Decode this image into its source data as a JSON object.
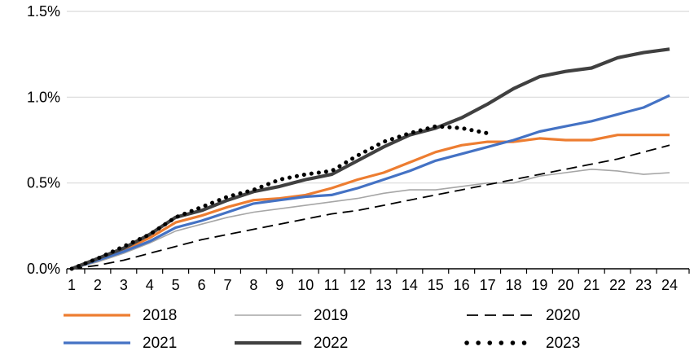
{
  "chart_data": {
    "type": "line",
    "title": "",
    "xlabel": "",
    "ylabel": "",
    "grid": true,
    "legend_position": "bottom",
    "ylim": [
      0,
      1.5
    ],
    "y_ticks": [
      {
        "label": "0.0%",
        "value": 0
      },
      {
        "label": "0.5%",
        "value": 0.5
      },
      {
        "label": "1.0%",
        "value": 1.0
      },
      {
        "label": "1.5%",
        "value": 1.5
      }
    ],
    "x": [
      1,
      2,
      3,
      4,
      5,
      6,
      7,
      8,
      9,
      10,
      11,
      12,
      13,
      14,
      15,
      16,
      17,
      18,
      19,
      20,
      21,
      22,
      23,
      24
    ],
    "series": [
      {
        "name": "2018",
        "color": "#ED7D31",
        "style": "solid",
        "width": 3.2,
        "values": [
          0.0,
          0.05,
          0.11,
          0.18,
          0.27,
          0.31,
          0.36,
          0.4,
          0.41,
          0.43,
          0.47,
          0.52,
          0.56,
          0.62,
          0.68,
          0.72,
          0.74,
          0.74,
          0.76,
          0.75,
          0.75,
          0.78,
          0.78,
          0.78
        ]
      },
      {
        "name": "2019",
        "color": "#A6A6A6",
        "style": "solid",
        "width": 1.6,
        "values": [
          0.0,
          0.04,
          0.09,
          0.15,
          0.22,
          0.26,
          0.3,
          0.33,
          0.35,
          0.37,
          0.39,
          0.41,
          0.44,
          0.46,
          0.46,
          0.48,
          0.5,
          0.5,
          0.54,
          0.56,
          0.58,
          0.57,
          0.55,
          0.56
        ]
      },
      {
        "name": "2020",
        "color": "#000000",
        "style": "dashed",
        "width": 1.8,
        "values": [
          0.0,
          0.02,
          0.05,
          0.09,
          0.13,
          0.17,
          0.2,
          0.23,
          0.26,
          0.29,
          0.32,
          0.34,
          0.37,
          0.4,
          0.43,
          0.46,
          0.49,
          0.52,
          0.55,
          0.58,
          0.61,
          0.64,
          0.68,
          0.72
        ]
      },
      {
        "name": "2021",
        "color": "#4472C4",
        "style": "solid",
        "width": 3.2,
        "values": [
          0.0,
          0.05,
          0.1,
          0.16,
          0.24,
          0.28,
          0.33,
          0.38,
          0.4,
          0.42,
          0.43,
          0.47,
          0.52,
          0.57,
          0.63,
          0.67,
          0.71,
          0.75,
          0.8,
          0.83,
          0.86,
          0.9,
          0.94,
          1.01
        ]
      },
      {
        "name": "2022",
        "color": "#404040",
        "style": "solid",
        "width": 4.2,
        "values": [
          0.0,
          0.06,
          0.12,
          0.2,
          0.3,
          0.34,
          0.4,
          0.45,
          0.48,
          0.52,
          0.55,
          0.63,
          0.71,
          0.78,
          0.82,
          0.88,
          0.96,
          1.05,
          1.12,
          1.15,
          1.17,
          1.23,
          1.26,
          1.28
        ]
      },
      {
        "name": "2023",
        "color": "#000000",
        "style": "dotted",
        "width": 5,
        "values": [
          0.0,
          0.06,
          0.13,
          0.2,
          0.3,
          0.36,
          0.42,
          0.46,
          0.52,
          0.55,
          0.57,
          0.66,
          0.74,
          0.79,
          0.83,
          0.82,
          0.79,
          null,
          null,
          null,
          null,
          null,
          null,
          null
        ]
      }
    ]
  },
  "colors": {
    "grid": "#D9D9D9",
    "axis": "#000000",
    "tick_text": "#000000",
    "background": "#FFFFFF"
  }
}
